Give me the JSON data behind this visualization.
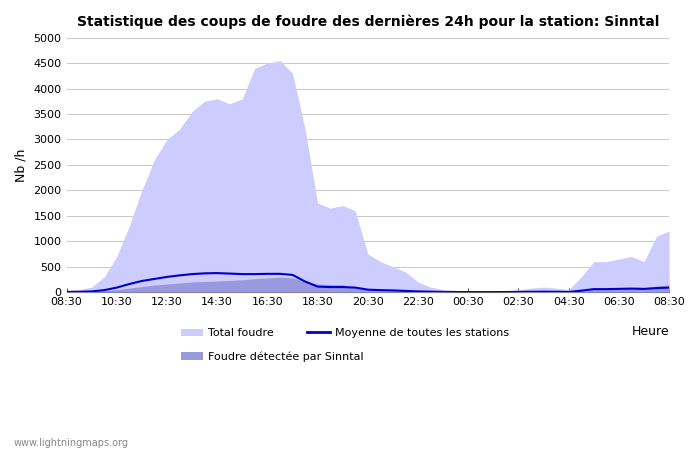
{
  "title": "Statistique des coups de foudre des dernières 24h pour la station: Sinntal",
  "xlabel": "Heure",
  "ylabel": "Nb /h",
  "ylim": [
    0,
    5000
  ],
  "yticks": [
    0,
    500,
    1000,
    1500,
    2000,
    2500,
    3000,
    3500,
    4000,
    4500,
    5000
  ],
  "xtick_labels": [
    "08:30",
    "10:30",
    "12:30",
    "14:30",
    "16:30",
    "18:30",
    "20:30",
    "22:30",
    "00:30",
    "02:30",
    "04:30",
    "06:30",
    "08:30"
  ],
  "watermark": "www.lightningmaps.org",
  "bg_color": "#ffffff",
  "plot_bg_color": "#ffffff",
  "grid_color": "#c8c8c8",
  "total_foudre_color": "#ccccff",
  "sinntal_color": "#9999dd",
  "moyenne_color": "#0000cc",
  "total_foudre_values": [
    30,
    50,
    100,
    300,
    700,
    1300,
    2000,
    2600,
    3000,
    3200,
    3550,
    3750,
    3800,
    3700,
    3800,
    4400,
    4500,
    4550,
    4300,
    3200,
    1750,
    1650,
    1700,
    1600,
    750,
    600,
    500,
    400,
    200,
    100,
    50,
    30,
    20,
    20,
    20,
    30,
    50,
    80,
    100,
    80,
    50,
    300,
    600,
    600,
    650,
    700,
    600,
    1100,
    1200
  ],
  "sinntal_values": [
    10,
    15,
    20,
    30,
    50,
    80,
    110,
    140,
    160,
    180,
    200,
    210,
    220,
    230,
    245,
    265,
    280,
    295,
    280,
    210,
    160,
    150,
    150,
    80,
    60,
    50,
    40,
    30,
    20,
    15,
    10,
    5,
    3,
    3,
    3,
    5,
    10,
    15,
    20,
    15,
    10,
    50,
    80,
    80,
    85,
    90,
    85,
    120,
    140
  ],
  "moyenne_values": [
    5,
    8,
    15,
    40,
    90,
    160,
    220,
    260,
    300,
    330,
    355,
    370,
    375,
    365,
    355,
    355,
    360,
    360,
    340,
    210,
    110,
    100,
    100,
    90,
    50,
    40,
    35,
    25,
    15,
    10,
    5,
    3,
    2,
    2,
    2,
    3,
    5,
    8,
    10,
    8,
    5,
    30,
    60,
    60,
    65,
    70,
    65,
    80,
    90
  ],
  "n_points": 49,
  "legend_row1": [
    "Total foudre",
    "Moyenne de toutes les stations"
  ],
  "legend_row2": [
    "Foudre détectée par Sinntal"
  ]
}
